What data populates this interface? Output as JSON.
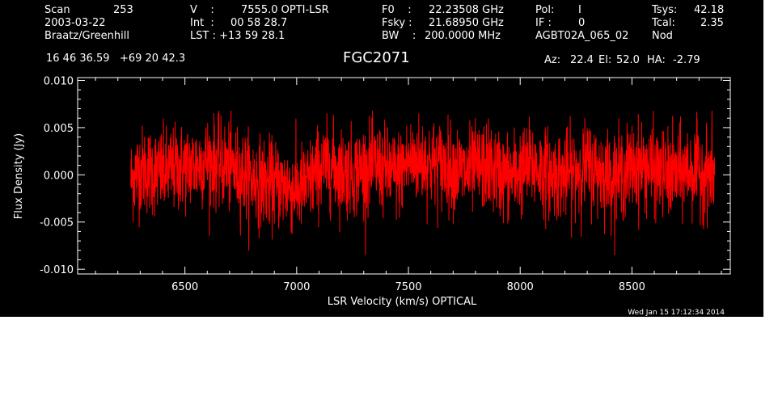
{
  "header": {
    "scan_label": "Scan",
    "scan_value": "253",
    "date": "2003-03-22",
    "observer": "Braatz/Greenhill",
    "v_label": "V    :",
    "v_value": "7555.0 OPTI-LSR",
    "int_label": "Int  :",
    "int_value": "00 58 28.7",
    "lst_label": "LST : +13 59 28.1",
    "f0_label": "F0    :",
    "f0_value": "22.23508 GHz",
    "fsky_label": "Fsky :",
    "fsky_value": "21.68950 GHz",
    "bw_label": "BW    :",
    "bw_value": "200.0000 MHz",
    "pol_label": "Pol:",
    "pol_value": "I",
    "if_label": "IF :",
    "if_value": "0",
    "project": "AGBT02A_065_02",
    "tsys_label": "Tsys:",
    "tsys_value": "42.18",
    "tcal_label": "Tcal:",
    "tcal_value": "2.35",
    "mode": "Nod",
    "coords": "16 46 36.59   +69 20 42.3",
    "source": "FGC2071",
    "az_label": "Az:",
    "az_value": "22.4",
    "el_label": "El:",
    "el_value": "52.0",
    "ha_label": "HA:",
    "ha_value": "-2.79"
  },
  "footer": {
    "timestamp": "Wed Jan 15 17:12:34 2014"
  },
  "colors": {
    "background": "#000000",
    "trace": "#ff0000",
    "axes": "#ffffff",
    "page": "#ffffff"
  },
  "chart_data": {
    "type": "line",
    "title": "FGC2071",
    "xlabel": "LSR Velocity (km/s) OPTICAL",
    "ylabel": "Flux Density (Jy)",
    "xlim": [
      6020,
      8940
    ],
    "ylim": [
      -0.0105,
      0.0103
    ],
    "x_range": [
      6258,
      8870
    ],
    "noise_rms": 0.0023,
    "xticks": [
      6500,
      7000,
      7500,
      8000,
      8500
    ],
    "xtick_labels": [
      "6500",
      "7000",
      "7500",
      "8000",
      "8500"
    ],
    "yticks": [
      -0.01,
      -0.005,
      0.0,
      0.005,
      0.01
    ],
    "ytick_labels": [
      "-0.010",
      "-0.005",
      "0.000",
      "0.005",
      "0.010"
    ],
    "grid": false,
    "series": [
      {
        "color": "#ff0000",
        "x": [
          6260,
          6300,
          6350,
          6400,
          6450,
          6500,
          6550,
          6600,
          6650,
          6700,
          6750,
          6800,
          6850,
          6900,
          6950,
          7000,
          7050,
          7100,
          7150,
          7200,
          7250,
          7300,
          7350,
          7400,
          7450,
          7500,
          7550,
          7600,
          7650,
          7700,
          7750,
          7800,
          7850,
          7900,
          7950,
          8000,
          8050,
          8100,
          8150,
          8200,
          8250,
          8300,
          8350,
          8400,
          8450,
          8500,
          8550,
          8600,
          8650,
          8700,
          8750,
          8800,
          8850,
          8870
        ],
        "values": [
          -0.0005,
          0.0006,
          0.0004,
          0.0002,
          0.0006,
          0.0008,
          0.001,
          0.0016,
          0.0012,
          0.0008,
          0.0002,
          -0.0004,
          -0.0008,
          -0.001,
          -0.0012,
          -0.0016,
          -0.001,
          0.0006,
          0.001,
          0.0004,
          0.0002,
          0.0006,
          0.001,
          0.0004,
          0.0,
          0.0014,
          0.0016,
          0.0012,
          0.001,
          0.0008,
          0.0002,
          0.0006,
          0.001,
          0.0002,
          -0.0002,
          0.0004,
          0.001,
          0.0004,
          0.0,
          0.0,
          0.0004,
          0.001,
          0.0004,
          0.0,
          0.0,
          0.0008,
          0.001,
          0.0004,
          0.0,
          0.0,
          0.0006,
          0.0004,
          0.0002,
          0.0
        ]
      }
    ]
  }
}
